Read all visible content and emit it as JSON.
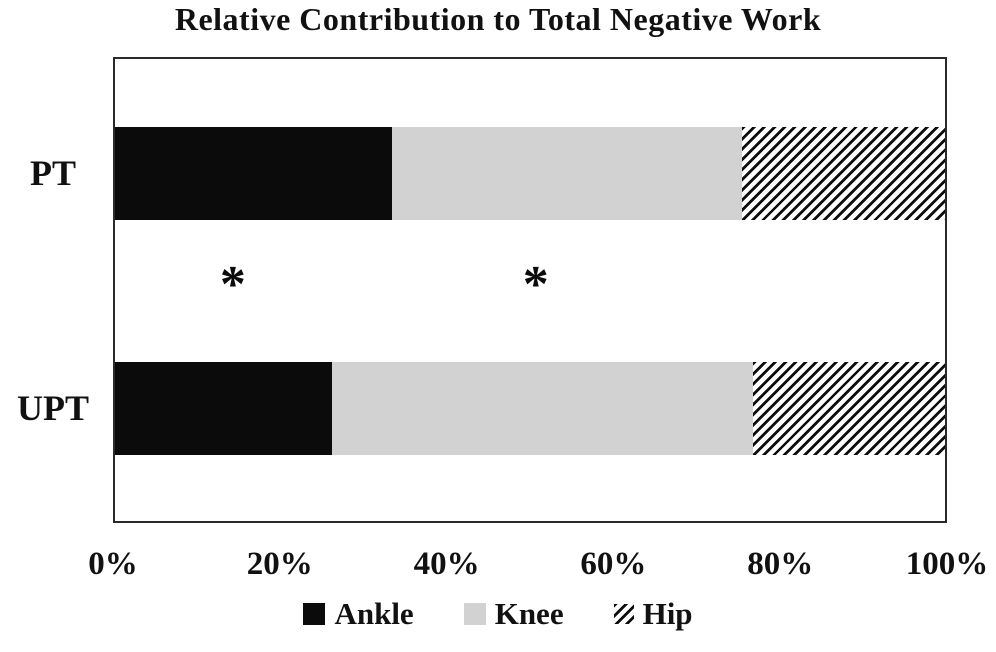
{
  "figure": {
    "title": "Relative Contribution to Total Negative Work"
  },
  "chart_data": {
    "type": "bar",
    "orientation": "horizontal",
    "stacked": true,
    "title": "Relative Contribution to Total Negative Work",
    "categories": [
      "PT",
      "UPT"
    ],
    "series": [
      {
        "name": "Ankle",
        "style": "solid",
        "color": "#0b0b0b",
        "values": [
          33.4,
          26.2
        ]
      },
      {
        "name": "Knee",
        "style": "solid",
        "color": "#d2d2d2",
        "values": [
          42.2,
          50.7
        ]
      },
      {
        "name": "Hip",
        "style": "diagonal-hatch",
        "color": "#0d0d0d",
        "values": [
          24.4,
          23.1
        ]
      }
    ],
    "x_axis": {
      "min": 0,
      "max": 100,
      "tick_labels": [
        "0%",
        "20%",
        "40%",
        "60%",
        "80%",
        "100%"
      ],
      "grid": false
    },
    "legend": {
      "position": "bottom",
      "entries": [
        "Ankle",
        "Knee",
        "Hip"
      ]
    },
    "annotations": [
      {
        "text": "*",
        "x_percent": 14.2,
        "location": "between-bars"
      },
      {
        "text": "*",
        "x_percent": 50.7,
        "location": "between-bars"
      }
    ]
  }
}
